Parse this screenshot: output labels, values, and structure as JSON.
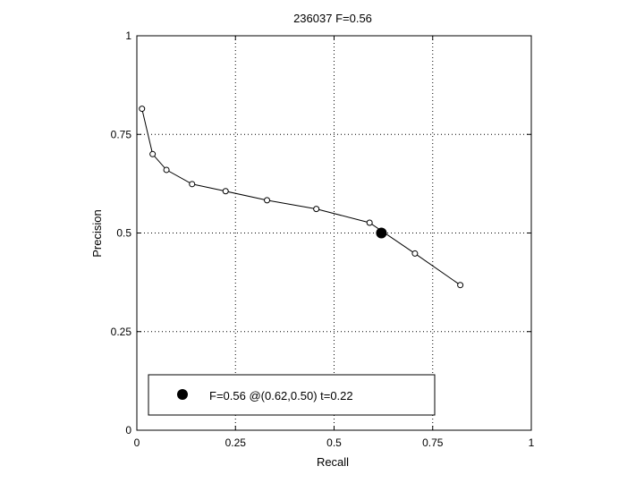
{
  "chart_data": {
    "type": "line",
    "title": "236037 F=0.56",
    "xlabel": "Recall",
    "ylabel": "Precision",
    "xlim": [
      0,
      1
    ],
    "ylim": [
      0,
      1
    ],
    "xticks": [
      {
        "value": 0,
        "label": "0"
      },
      {
        "value": 0.25,
        "label": "0.25"
      },
      {
        "value": 0.5,
        "label": "0.5"
      },
      {
        "value": 0.75,
        "label": "0.75"
      },
      {
        "value": 1,
        "label": "1"
      }
    ],
    "yticks": [
      {
        "value": 0,
        "label": "0"
      },
      {
        "value": 0.25,
        "label": "0.25"
      },
      {
        "value": 0.5,
        "label": "0.5"
      },
      {
        "value": 0.75,
        "label": "0.75"
      },
      {
        "value": 1,
        "label": "1"
      }
    ],
    "grid": true,
    "series": [
      {
        "marker": "open-circle",
        "color": "#000000",
        "points": [
          [
            0.013,
            0.815
          ],
          [
            0.04,
            0.7
          ],
          [
            0.075,
            0.66
          ],
          [
            0.14,
            0.624
          ],
          [
            0.225,
            0.606
          ],
          [
            0.33,
            0.583
          ],
          [
            0.455,
            0.561
          ],
          [
            0.59,
            0.526
          ],
          [
            0.705,
            0.448
          ],
          [
            0.82,
            0.368
          ]
        ]
      }
    ],
    "highlight": {
      "x": 0.62,
      "y": 0.5,
      "marker": "filled-circle",
      "color": "#000000"
    },
    "legend": {
      "position": "bottom",
      "entries": [
        {
          "label": "F=0.56 @(0.62,0.50) t=0.22",
          "marker": "filled-circle"
        }
      ]
    }
  }
}
